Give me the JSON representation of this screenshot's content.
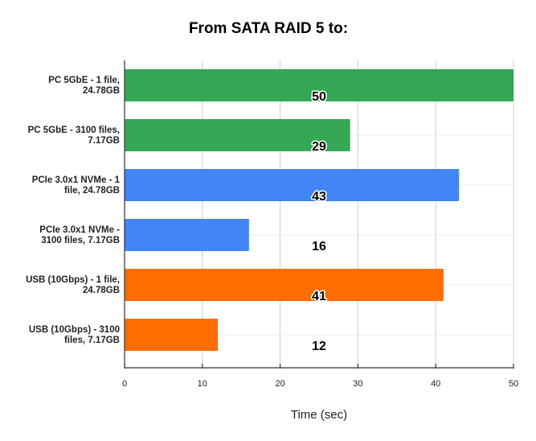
{
  "chart_data": {
    "type": "bar",
    "orientation": "horizontal",
    "title": "From SATA RAID 5 to:",
    "xlabel": "Time (sec)",
    "ylabel": "",
    "categories": [
      [
        "PC 5GbE - 1 file,",
        "24.78GB"
      ],
      [
        "PC 5GbE - 3100 files,",
        "7.17GB"
      ],
      [
        "PCIe 3.0x1 NVMe - 1",
        "file, 24.78GB"
      ],
      [
        "PCIe 3.0x1 NVMe -",
        "3100 files, 7.17GB"
      ],
      [
        "USB (10Gbps) - 1 file,",
        "24.78GB"
      ],
      [
        "USB (10Gbps) - 3100",
        "files, 7.17GB"
      ]
    ],
    "values": [
      50,
      29,
      43,
      16,
      41,
      12
    ],
    "data_labels": [
      "50",
      "29",
      "43",
      "16",
      "41",
      "12"
    ],
    "bar_colors": [
      "#34a853",
      "#34a853",
      "#4285f4",
      "#4285f4",
      "#ff6d01",
      "#ff6d01"
    ],
    "xlim": [
      0,
      50
    ],
    "x_ticks": [
      0,
      10,
      20,
      30,
      40,
      50
    ],
    "x_tick_labels": [
      "0",
      "10",
      "20",
      "30",
      "40",
      "50"
    ],
    "grid": true,
    "legend": "none",
    "colors": {
      "grid": "#cccccc",
      "grid_minor": "#e6e6e6",
      "axis": "#333333",
      "text": "#222222"
    }
  }
}
